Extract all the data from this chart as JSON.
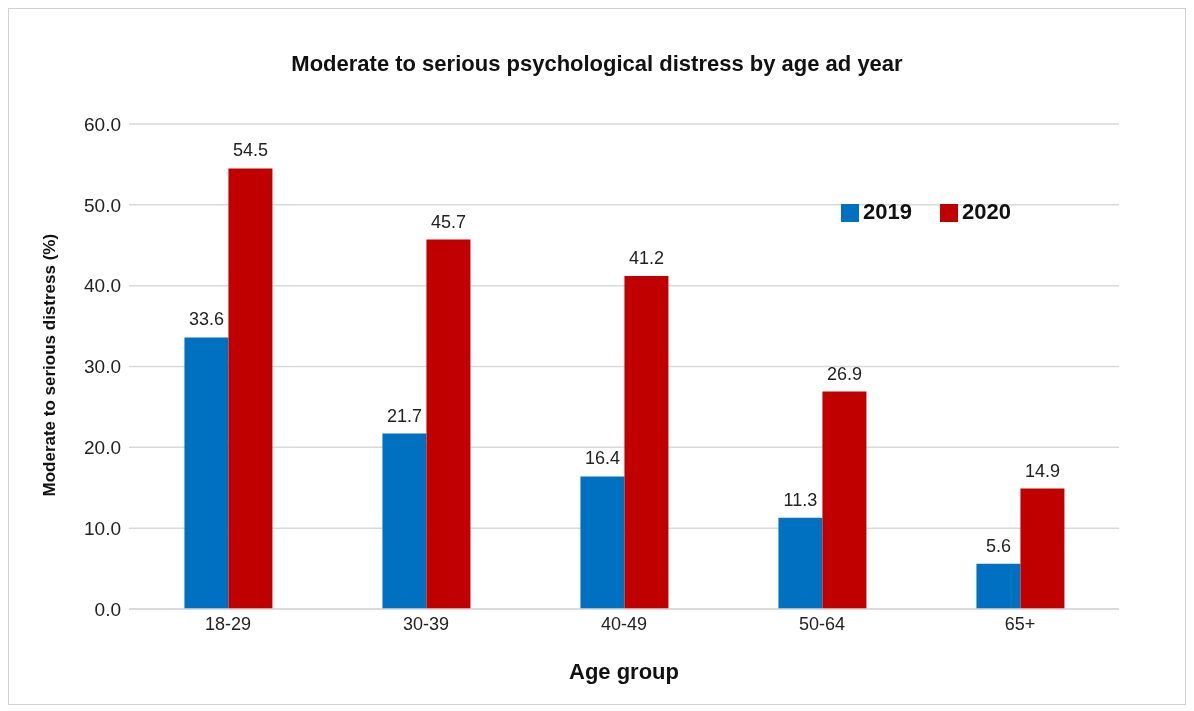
{
  "chart_data": {
    "type": "bar",
    "title": "Moderate to serious psychological distress by age ad year",
    "xlabel": "Age group",
    "ylabel": "Moderate to serious  distress (%)",
    "categories": [
      "18-29",
      "30-39",
      "40-49",
      "50-64",
      "65+"
    ],
    "series": [
      {
        "name": "2019",
        "color": "#0070c0",
        "values": [
          33.6,
          21.7,
          16.4,
          11.3,
          5.6
        ]
      },
      {
        "name": "2020",
        "color": "#c00000",
        "values": [
          54.5,
          45.7,
          41.2,
          26.9,
          14.9
        ]
      }
    ],
    "ylim": [
      0,
      60
    ],
    "yticks": [
      {
        "value": 0,
        "label": "0.0"
      },
      {
        "value": 10,
        "label": "10.0"
      },
      {
        "value": 20,
        "label": "20.0"
      },
      {
        "value": 30,
        "label": "30.0"
      },
      {
        "value": 40,
        "label": "40.0"
      },
      {
        "value": 50,
        "label": "50.0"
      },
      {
        "value": 60,
        "label": "60.0"
      }
    ],
    "grid": "y",
    "legend": "top right",
    "data_labels": true
  }
}
